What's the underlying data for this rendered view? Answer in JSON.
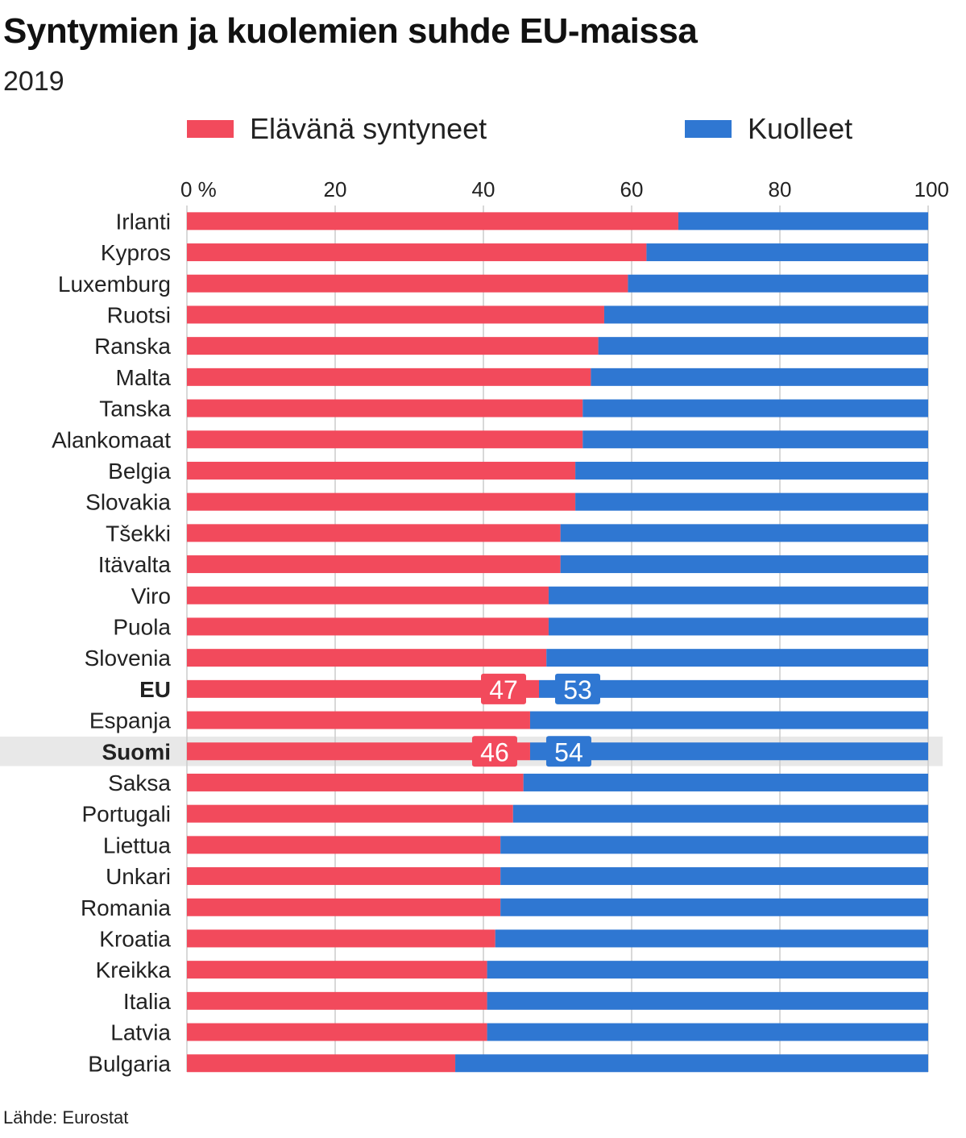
{
  "title": "Syntymien ja kuolemien suhde EU-maissa",
  "subtitle": "2019",
  "source": "Lähde: Eurostat",
  "colors": {
    "births": "#f24a5c",
    "deaths": "#2f77d2",
    "grid": "#cccccc",
    "highlight_row": "#e8e8e8"
  },
  "chart_data": {
    "type": "bar",
    "orientation": "horizontal",
    "stacked": true,
    "xlim": [
      0,
      100
    ],
    "ticks": [
      "0 %",
      "20",
      "40",
      "60",
      "80",
      "100"
    ],
    "tick_values": [
      0,
      20,
      40,
      60,
      80,
      100
    ],
    "grid": true,
    "legend_position": "top",
    "categories": [
      "Irlanti",
      "Kypros",
      "Luxemburg",
      "Ruotsi",
      "Ranska",
      "Malta",
      "Tanska",
      "Alankomaat",
      "Belgia",
      "Slovakia",
      "Tšekki",
      "Itävalta",
      "Viro",
      "Puola",
      "Slovenia",
      "EU",
      "Espanja",
      "Suomi",
      "Saksa",
      "Portugali",
      "Liettua",
      "Unkari",
      "Romania",
      "Kroatia",
      "Kreikka",
      "Italia",
      "Latvia",
      "Bulgaria"
    ],
    "bold_categories": [
      "EU",
      "Suomi"
    ],
    "highlighted_categories": [
      "Suomi"
    ],
    "series": [
      {
        "name": "Elävänä syntyneet",
        "values": [
          66.3,
          62,
          59.5,
          56.3,
          55.5,
          54.5,
          53.4,
          53.4,
          52.4,
          52.4,
          50.4,
          50.4,
          48.8,
          48.8,
          48.5,
          47.5,
          46.3,
          46.3,
          45.4,
          44.0,
          42.3,
          42.3,
          42.3,
          41.6,
          40.5,
          40.5,
          40.5,
          36.2
        ]
      },
      {
        "name": "Kuolleet",
        "values": [
          33.7,
          38,
          40.5,
          43.7,
          44.5,
          45.5,
          46.6,
          46.6,
          47.6,
          47.6,
          49.6,
          49.6,
          51.2,
          51.2,
          51.5,
          52.5,
          53.7,
          53.7,
          54.6,
          56.0,
          57.7,
          57.7,
          57.7,
          58.4,
          59.5,
          59.5,
          59.5,
          63.8
        ]
      }
    ],
    "data_labels": [
      {
        "category": "EU",
        "births": "47",
        "deaths": "53"
      },
      {
        "category": "Suomi",
        "births": "46",
        "deaths": "54"
      }
    ]
  }
}
